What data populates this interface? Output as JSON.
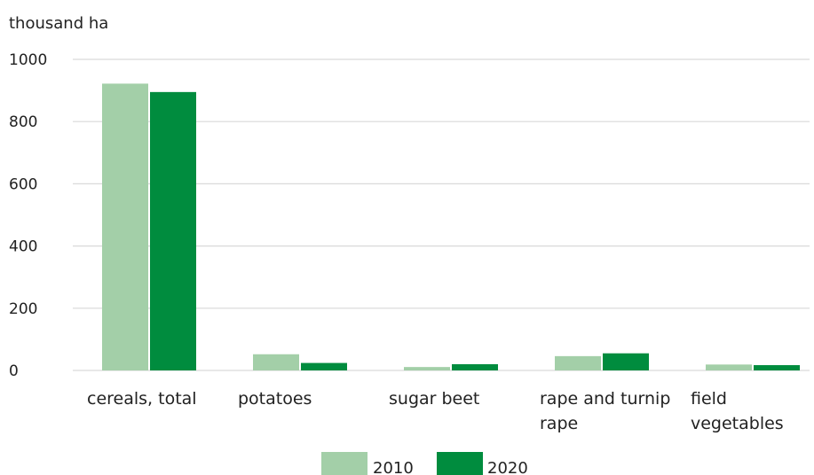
{
  "chart_data": {
    "type": "bar",
    "ylabel": "thousand ha",
    "ylim": [
      0,
      1000
    ],
    "yticks": [
      "0",
      "200",
      "400",
      "600",
      "800",
      "1000"
    ],
    "grid": true,
    "legend_position": "bottom",
    "categories": [
      [
        "cereals, total"
      ],
      [
        "potatoes"
      ],
      [
        "sugar beet"
      ],
      [
        "rape and turnip",
        "rape"
      ],
      [
        "field",
        "vegetables"
      ]
    ],
    "series": [
      {
        "name": "2010",
        "color": "#a3cfa8",
        "values": [
          922,
          52,
          11,
          46,
          19
        ]
      },
      {
        "name": "2020",
        "color": "#008c3e",
        "values": [
          895,
          24,
          20,
          55,
          17
        ]
      }
    ]
  }
}
